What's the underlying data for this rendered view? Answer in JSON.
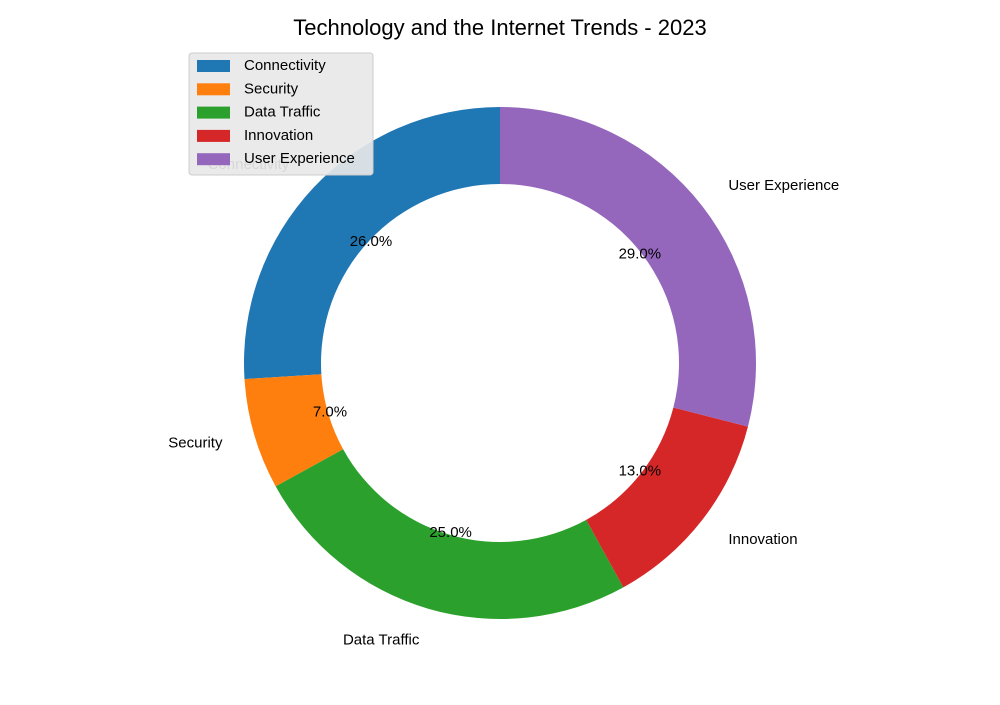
{
  "chart_data": {
    "type": "pie",
    "style": "donut",
    "title": "Technology and the Internet Trends - 2023",
    "categories": [
      "Connectivity",
      "Security",
      "Data Traffic",
      "Innovation",
      "User Experience"
    ],
    "values": [
      26.0,
      7.0,
      25.0,
      13.0,
      29.0
    ],
    "percent_labels": [
      "26.0%",
      "7.0%",
      "25.0%",
      "13.0%",
      "29.0%"
    ],
    "colors": [
      "#1f77b4",
      "#ff7f0e",
      "#2ca02c",
      "#d62728",
      "#9467bd"
    ],
    "start_angle_deg": 90,
    "direction": "counterclockwise",
    "legend": {
      "placement": "top-left",
      "entries": [
        "Connectivity",
        "Security",
        "Data Traffic",
        "Innovation",
        "User Experience"
      ]
    }
  }
}
